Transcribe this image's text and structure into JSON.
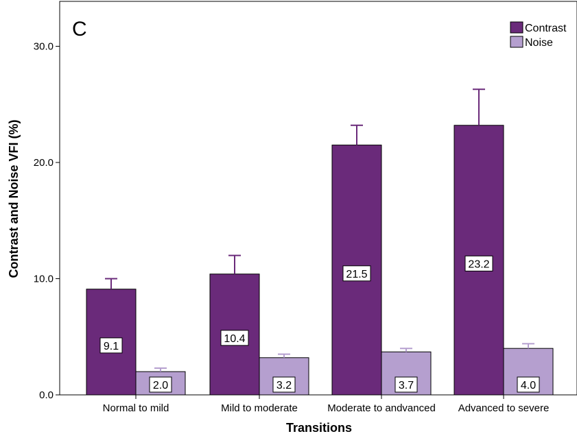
{
  "chart_data": {
    "type": "bar",
    "panel_label": "C",
    "xlabel": "Transitions",
    "ylabel": "Contrast and Noise VFI (%)",
    "ylim": [
      0,
      33
    ],
    "yticks": [
      0,
      10,
      20,
      30
    ],
    "ytick_labels": [
      "0.0",
      "10.0",
      "20.0",
      "30.0"
    ],
    "categories": [
      "Normal to mild",
      "Mild to moderate",
      "Moderate to andvanced",
      "Advanced to severe"
    ],
    "series": [
      {
        "name": "Contrast",
        "color": "#6a2a7a",
        "values": [
          9.1,
          10.4,
          21.5,
          23.2
        ],
        "value_labels": [
          "9.1",
          "10.4",
          "21.5",
          "23.2"
        ],
        "error_upper": [
          10.0,
          12.0,
          23.2,
          26.3
        ]
      },
      {
        "name": "Noise",
        "color": "#b59fcf",
        "values": [
          2.0,
          3.2,
          3.7,
          4.0
        ],
        "value_labels": [
          "2.0",
          "3.2",
          "3.7",
          "4.0"
        ],
        "error_upper": [
          2.3,
          3.5,
          4.0,
          4.4
        ]
      }
    ],
    "legend_position": "top-right",
    "grid": false
  }
}
